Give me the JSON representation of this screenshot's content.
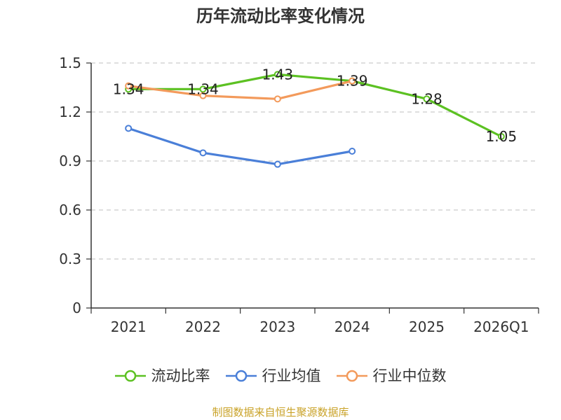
{
  "chart_data": {
    "type": "line",
    "title": "历年流动比率变化情况",
    "categories": [
      "2021",
      "2022",
      "2023",
      "2024",
      "2025",
      "2026Q1"
    ],
    "ylim": [
      0,
      1.5
    ],
    "yticks": [
      "0",
      "0.3",
      "0.6",
      "0.9",
      "1.2",
      "1.5"
    ],
    "grid": true,
    "legend_position": "bottom",
    "series": [
      {
        "name": "流动比率",
        "color": "#5cc122",
        "values": [
          1.34,
          1.34,
          1.43,
          1.39,
          1.28,
          1.05
        ],
        "labels": [
          "1.34",
          "1.34",
          "1.43",
          "1.39",
          "1.28",
          "1.05"
        ]
      },
      {
        "name": "行业均值",
        "color": "#4a7fd8",
        "values": [
          1.1,
          0.95,
          0.88,
          0.96,
          null,
          null
        ]
      },
      {
        "name": "行业中位数",
        "color": "#f39a5b",
        "values": [
          1.36,
          1.3,
          1.28,
          1.39,
          null,
          null
        ]
      }
    ]
  },
  "footer": {
    "source": "制图数据来自恒生聚源数据库"
  }
}
